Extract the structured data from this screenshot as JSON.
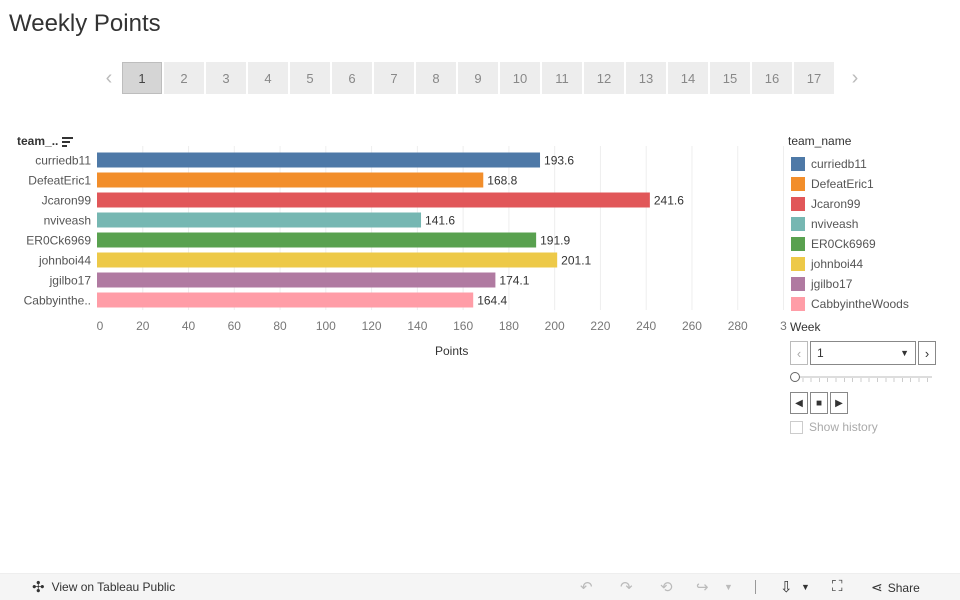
{
  "title": "Weekly Points",
  "pager": {
    "pages": [
      "1",
      "2",
      "3",
      "4",
      "5",
      "6",
      "7",
      "8",
      "9",
      "10",
      "11",
      "12",
      "13",
      "14",
      "15",
      "16",
      "17"
    ],
    "selected": "1",
    "prev_icon": "chevron-left-icon",
    "next_icon": "chevron-right-icon"
  },
  "chart_data": {
    "type": "bar",
    "orientation": "horizontal",
    "row_header": "team_..",
    "categories": [
      "curriedb11",
      "DefeatEric1",
      "Jcaron99",
      "nviveash",
      "ER0Ck6969",
      "johnboi44",
      "jgilbo17",
      "Cabbyinthe.."
    ],
    "values": [
      193.6,
      168.8,
      241.6,
      141.6,
      191.9,
      201.1,
      174.1,
      164.4
    ],
    "value_labels": [
      "193.6",
      "168.8",
      "241.6",
      "141.6",
      "191.9",
      "201.1",
      "174.1",
      "164.4"
    ],
    "colors": [
      "#4e79a7",
      "#f28e2b",
      "#e15759",
      "#76b7b2",
      "#59a14f",
      "#edc948",
      "#b07aa1",
      "#ff9da7"
    ],
    "xlabel": "Points",
    "x_ticks": [
      "0",
      "20",
      "40",
      "60",
      "80",
      "100",
      "120",
      "140",
      "160",
      "180",
      "200",
      "220",
      "240",
      "260",
      "280",
      "3"
    ],
    "xlim": [
      0,
      300
    ],
    "grid": "vertical"
  },
  "legend": {
    "title": "team_name",
    "items": [
      {
        "label": "curriedb11",
        "color": "#4e79a7"
      },
      {
        "label": "DefeatEric1",
        "color": "#f28e2b"
      },
      {
        "label": "Jcaron99",
        "color": "#e15759"
      },
      {
        "label": "nviveash",
        "color": "#76b7b2"
      },
      {
        "label": "ER0Ck6969",
        "color": "#59a14f"
      },
      {
        "label": "johnboi44",
        "color": "#edc948"
      },
      {
        "label": "jgilbo17",
        "color": "#b07aa1"
      },
      {
        "label": "CabbyintheWoods",
        "color": "#ff9da7"
      }
    ]
  },
  "week_filter": {
    "label": "Week",
    "value": "1",
    "history_label": "Show history"
  },
  "footer": {
    "view_label": "View on Tableau Public",
    "share_label": "Share"
  }
}
